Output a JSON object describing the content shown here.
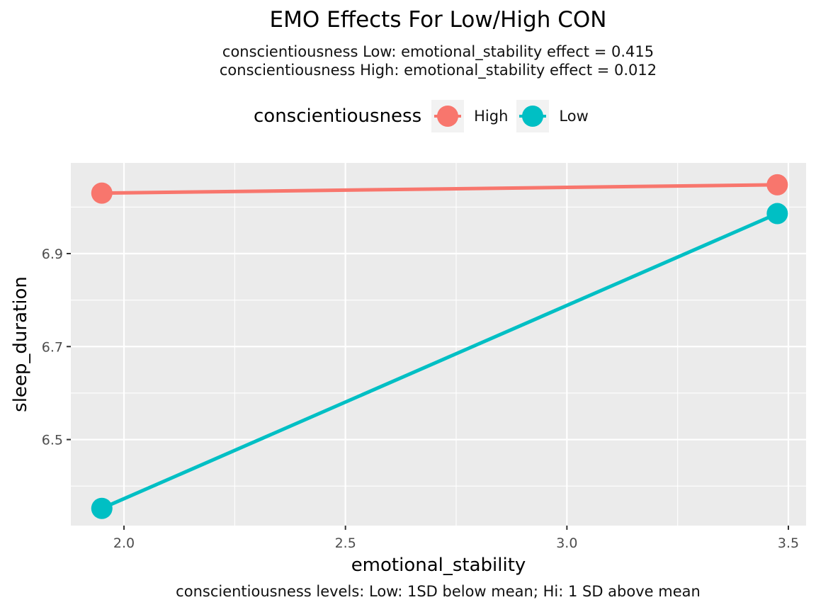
{
  "chart_data": {
    "type": "line",
    "title": "EMO Effects For Low/High CON",
    "subtitle_lines": [
      "conscientiousness Low: emotional_stability effect = 0.415",
      "conscientiousness High: emotional_stability effect = 0.012"
    ],
    "xlabel": "emotional_stability",
    "ylabel": "sleep_duration",
    "caption": "conscientiousness levels: Low: 1SD below mean; Hi: 1 SD above mean",
    "xlim": [
      1.88,
      3.54
    ],
    "ylim": [
      6.315,
      7.095
    ],
    "x_ticks": [
      2.0,
      2.5,
      3.0,
      3.5
    ],
    "x_tick_labels": [
      "2.0",
      "2.5",
      "3.0",
      "3.5"
    ],
    "y_ticks": [
      6.5,
      6.7,
      6.9
    ],
    "y_tick_labels": [
      "6.5",
      "6.7",
      "6.9"
    ],
    "grid": true,
    "legend": {
      "title": "conscientiousness",
      "position": "top",
      "entries": [
        "High",
        "Low"
      ]
    },
    "series": [
      {
        "name": "High",
        "color": "#F8766D",
        "x": [
          1.95,
          3.475
        ],
        "y": [
          7.03,
          7.048
        ]
      },
      {
        "name": "Low",
        "color": "#00BFC4",
        "x": [
          1.95,
          3.475
        ],
        "y": [
          6.352,
          6.986
        ]
      }
    ]
  }
}
